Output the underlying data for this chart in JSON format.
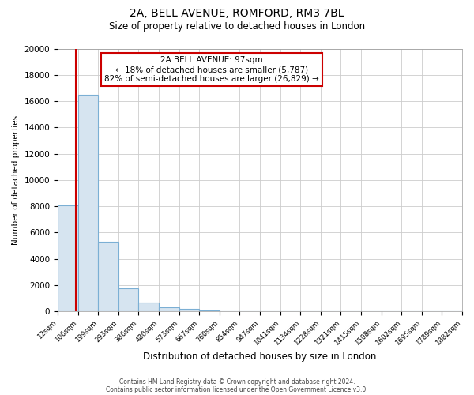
{
  "title_line1": "2A, BELL AVENUE, ROMFORD, RM3 7BL",
  "title_line2": "Size of property relative to detached houses in London",
  "xlabel": "Distribution of detached houses by size in London",
  "ylabel": "Number of detached properties",
  "bin_labels": [
    "12sqm",
    "106sqm",
    "199sqm",
    "293sqm",
    "386sqm",
    "480sqm",
    "573sqm",
    "667sqm",
    "760sqm",
    "854sqm",
    "947sqm",
    "1041sqm",
    "1134sqm",
    "1228sqm",
    "1321sqm",
    "1415sqm",
    "1508sqm",
    "1602sqm",
    "1695sqm",
    "1789sqm",
    "1882sqm"
  ],
  "bar_values": [
    8100,
    16500,
    5300,
    1750,
    700,
    300,
    200,
    100,
    0,
    0,
    0,
    0,
    0,
    0,
    0,
    0,
    0,
    0,
    0,
    0
  ],
  "bar_color": "#d6e4f0",
  "bar_edge_color": "#7bafd4",
  "annotation_title": "2A BELL AVENUE: 97sqm",
  "annotation_line1": "← 18% of detached houses are smaller (5,787)",
  "annotation_line2": "82% of semi-detached houses are larger (26,829) →",
  "annotation_box_color": "#ffffff",
  "annotation_box_edge": "#cc0000",
  "red_line_color": "#cc0000",
  "red_line_x": 0.88,
  "ylim": [
    0,
    20000
  ],
  "yticks": [
    0,
    2000,
    4000,
    6000,
    8000,
    10000,
    12000,
    14000,
    16000,
    18000,
    20000
  ],
  "footer_line1": "Contains HM Land Registry data © Crown copyright and database right 2024.",
  "footer_line2": "Contains public sector information licensed under the Open Government Licence v3.0.",
  "bg_color": "#ffffff",
  "plot_bg_color": "#ffffff",
  "grid_color": "#cccccc",
  "title_fontsize": 10,
  "subtitle_fontsize": 8.5
}
